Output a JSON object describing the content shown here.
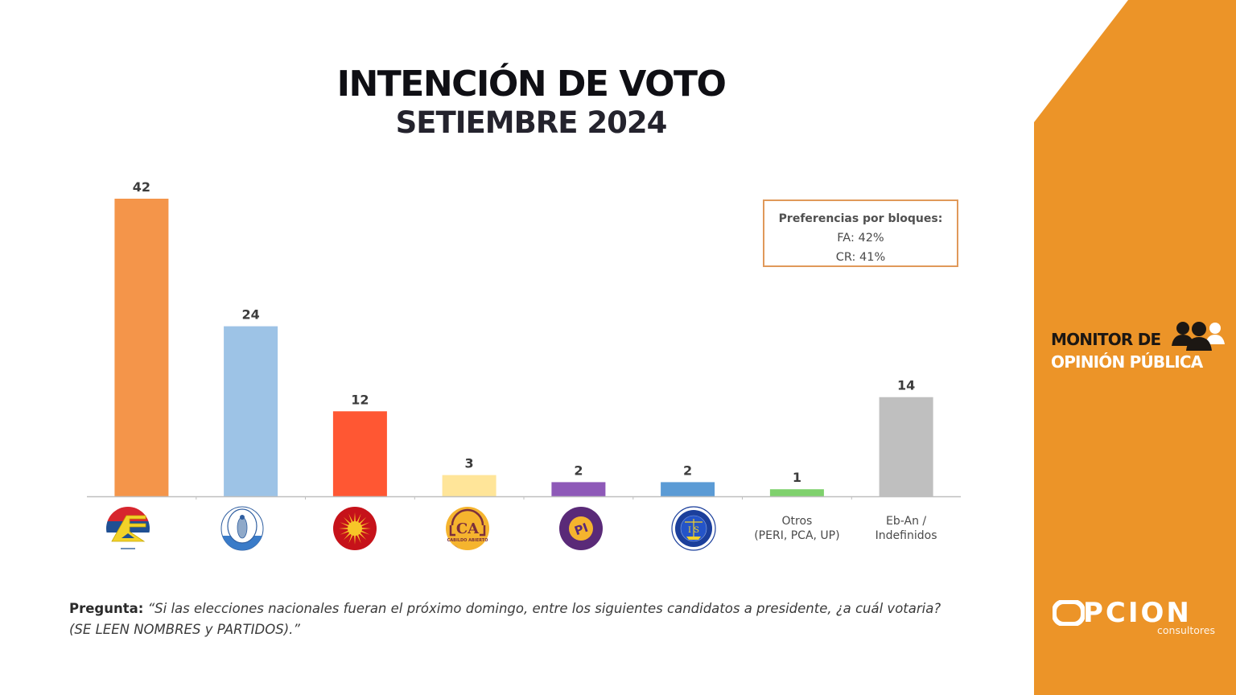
{
  "header": {
    "title": "INTENCIÓN DE VOTO",
    "subtitle": "SETIEMBRE 2024"
  },
  "colors": {
    "sidebar_orange": "#ec9428",
    "axis": "#bfbfbf",
    "value_text": "#3c3c3c"
  },
  "chart_data": {
    "type": "bar",
    "title": "INTENCIÓN DE VOTO",
    "subtitle": "SETIEMBRE 2024",
    "xlabel": "",
    "ylabel": "",
    "ylim": [
      0,
      42
    ],
    "grid": false,
    "categories": [
      {
        "label": "",
        "icon": "frente-amplio-logo-icon",
        "value": 42,
        "color": "#f4954a"
      },
      {
        "label": "",
        "icon": "partido-nacional-logo-icon",
        "value": 24,
        "color": "#9dc3e6"
      },
      {
        "label": "",
        "icon": "partido-colorado-logo-icon",
        "value": 12,
        "color": "#ff5733"
      },
      {
        "label": "",
        "icon": "cabildo-abierto-logo-icon",
        "value": 3,
        "color": "#ffe599"
      },
      {
        "label": "",
        "icon": "partido-independiente-logo-icon",
        "value": 2,
        "color": "#8e59b8"
      },
      {
        "label": "",
        "icon": "identidad-soberana-logo-icon",
        "value": 2,
        "color": "#5b9bd5"
      },
      {
        "label": "Otros\n(PERI, PCA, UP)",
        "label_lines": [
          "Otros",
          "(PERI, PCA, UP)"
        ],
        "icon": "",
        "value": 1,
        "color": "#7fd16d"
      },
      {
        "label": "Eb-An /\nIndefinidos",
        "label_lines": [
          "Eb-An /",
          "Indefinidos"
        ],
        "icon": "",
        "value": 14,
        "color": "#bfbfbf"
      }
    ],
    "values": [
      42,
      24,
      12,
      3,
      2,
      2,
      1,
      14
    ],
    "value_labels": [
      "42",
      "24",
      "12",
      "3",
      "2",
      "2",
      "1",
      "14"
    ],
    "annotation": {
      "title": "Preferencias por bloques:",
      "lines": [
        "FA: 42%",
        "CR: 41%"
      ]
    }
  },
  "logos": {
    "ca_letters": "CA",
    "ca_text": "CABILDO ABIERTO",
    "pi_letters": "PI",
    "is_letters": "I S"
  },
  "question": {
    "label": "Pregunta:",
    "text": " “Si las elecciones nacionales fueran el próximo domingo, entre los siguientes candidatos a presidente, ¿a cuál votaria? (SE LEEN NOMBRES y PARTIDOS).”"
  },
  "branding": {
    "monitor_line1": "MONITOR DE",
    "monitor_line2": "OPINIÓN PÚBLICA",
    "opcion_word": "PCION",
    "opcion_full": "OPCION",
    "opcion_sub": "consultores"
  }
}
